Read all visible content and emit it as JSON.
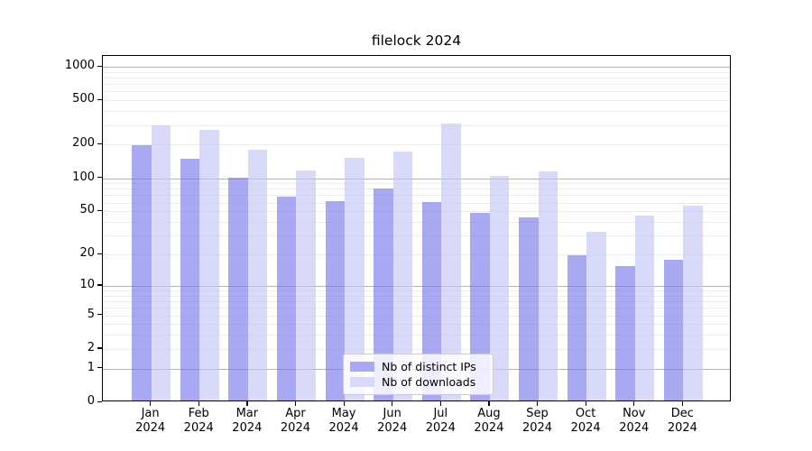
{
  "title": "filelock 2024",
  "chart_data": {
    "type": "bar",
    "title": "filelock 2024",
    "categories": [
      "Jan 2024",
      "Feb 2024",
      "Mar 2024",
      "Apr 2024",
      "May 2024",
      "Jun 2024",
      "Jul 2024",
      "Aug 2024",
      "Sep 2024",
      "Oct 2024",
      "Nov 2024",
      "Dec 2024"
    ],
    "series": [
      {
        "name": "Nb of distinct IPs",
        "color": "#a9a9f3",
        "fill": "rgba(123,123,237,0.65)",
        "values": [
          190,
          143,
          97,
          66,
          60,
          77,
          58,
          47,
          42,
          19,
          15,
          17
        ]
      },
      {
        "name": "Nb of downloads",
        "color": "#d9d9f9",
        "fill": "rgba(196,196,246,0.65)",
        "values": [
          289,
          260,
          175,
          113,
          148,
          166,
          300,
          101,
          111,
          31,
          44,
          54
        ]
      }
    ],
    "xlabel": "",
    "ylabel": "",
    "yscale": "log1p",
    "ylim": [
      0,
      1250
    ],
    "yticks": [
      0,
      1,
      2,
      5,
      10,
      20,
      50,
      100,
      200,
      500,
      1000
    ],
    "major_gridlines": [
      1,
      10,
      100,
      1000
    ],
    "minor_gridlines": [
      2,
      3,
      4,
      5,
      6,
      7,
      8,
      9,
      20,
      30,
      40,
      50,
      60,
      70,
      80,
      90,
      200,
      300,
      400,
      500,
      600,
      700,
      800,
      900
    ],
    "grid": true,
    "legend_position": "lower center"
  }
}
